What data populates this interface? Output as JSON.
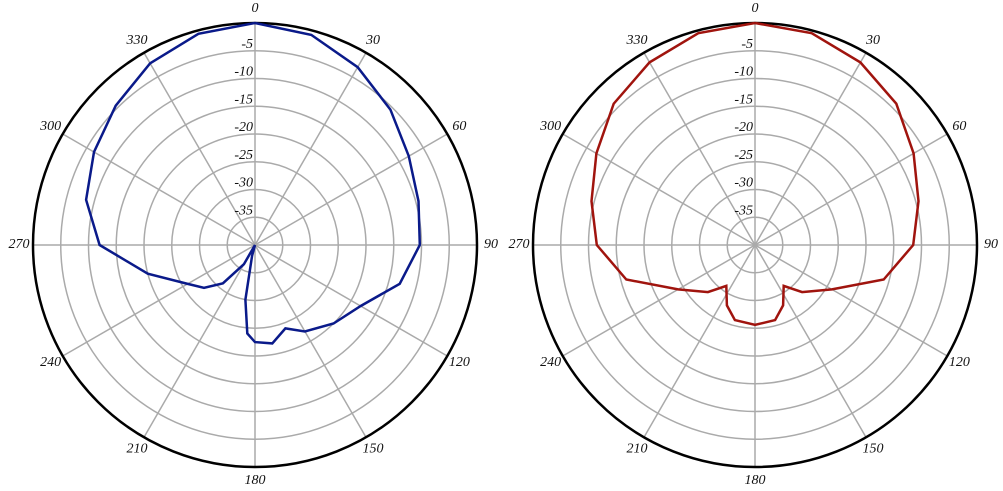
{
  "chart_data": [
    {
      "type": "polar",
      "x": [
        0,
        15,
        30,
        45,
        60,
        75,
        90,
        105,
        120,
        135,
        150,
        160,
        170,
        180,
        185,
        190,
        195,
        200,
        210,
        220,
        230,
        240,
        255,
        270,
        285,
        300,
        315,
        330,
        345,
        360
      ],
      "values": [
        0,
        -0.8,
        -3,
        -5.5,
        -8,
        -9.5,
        -10.3,
        -13,
        -18,
        -20,
        -22,
        -24,
        -22,
        -22.5,
        -24,
        -30,
        -38,
        -40,
        -36,
        -31,
        -28,
        -26,
        -20,
        -12,
        -8.5,
        -6.5,
        -4.5,
        -2.2,
        -0.6,
        0
      ],
      "color": "#0a1a8a",
      "xticks": [
        0,
        30,
        60,
        90,
        120,
        150,
        180,
        210,
        240,
        270,
        300,
        330
      ],
      "ylim": [
        -40,
        0
      ],
      "yticks": [
        -35,
        -30,
        -25,
        -20,
        -15,
        -10,
        -5
      ]
    },
    {
      "type": "polar",
      "x": [
        0,
        15,
        30,
        45,
        60,
        75,
        90,
        105,
        120,
        135,
        145,
        155,
        165,
        180,
        195,
        205,
        215,
        225,
        240,
        255,
        270,
        285,
        300,
        315,
        330,
        345,
        360
      ],
      "values": [
        0,
        -0.5,
        -2,
        -4,
        -7,
        -9.5,
        -11.5,
        -16,
        -24,
        -28,
        -31,
        -28,
        -26,
        -25.6,
        -26,
        -28,
        -31,
        -28,
        -24,
        -16,
        -11.5,
        -9.5,
        -7,
        -4,
        -2,
        -0.5,
        0
      ],
      "color": "#a0140e",
      "xticks": [
        0,
        30,
        60,
        90,
        120,
        150,
        180,
        210,
        240,
        270,
        300,
        330
      ],
      "ylim": [
        -40,
        0
      ],
      "yticks": [
        -35,
        -30,
        -25,
        -20,
        -15,
        -10,
        -5
      ]
    }
  ]
}
